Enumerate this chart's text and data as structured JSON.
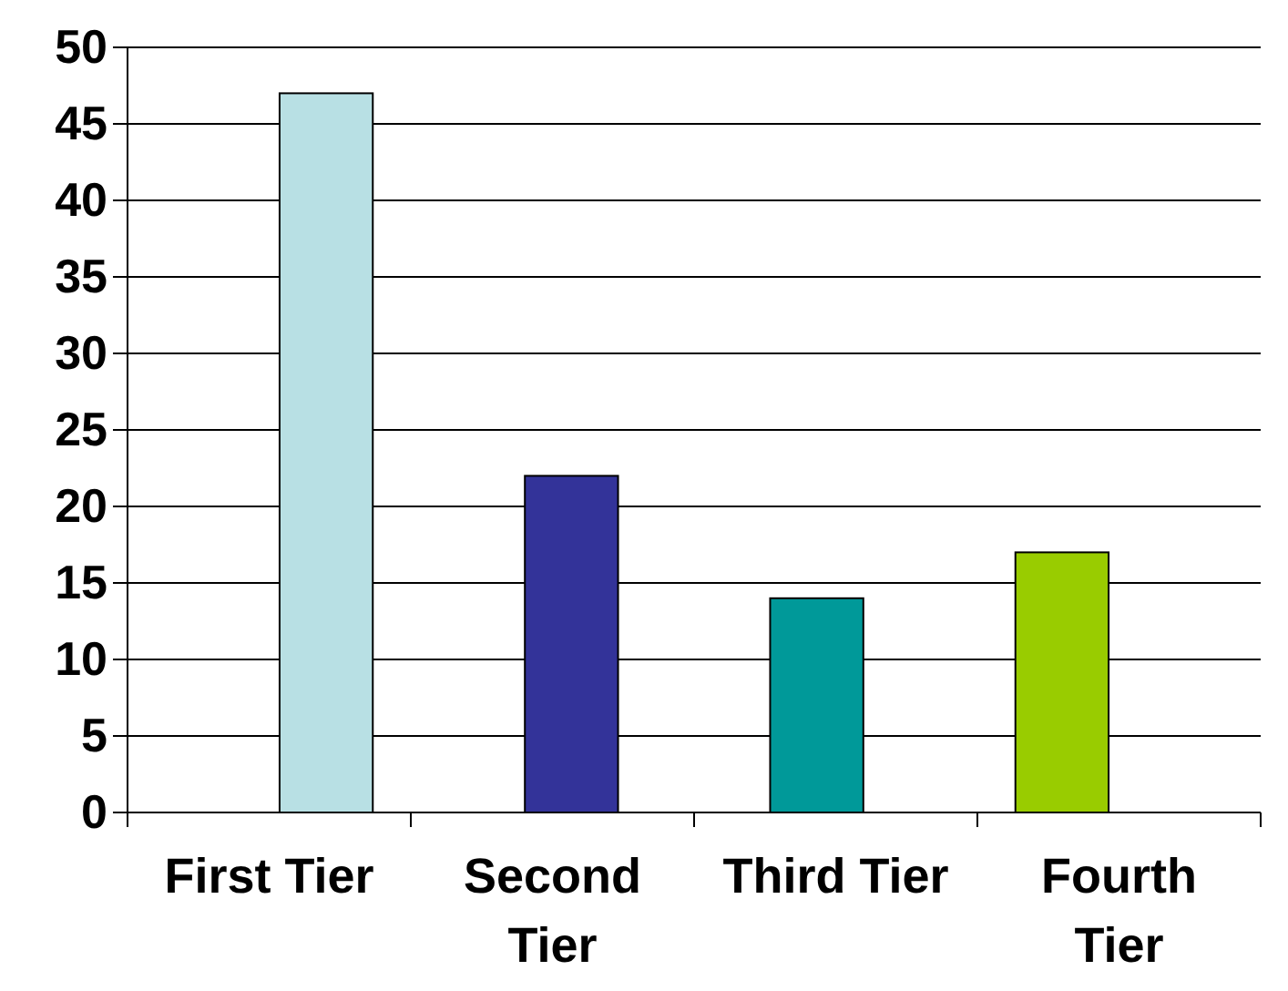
{
  "chart_data": {
    "type": "bar",
    "categories": [
      "First Tier",
      "Second Tier",
      "Third Tier",
      "Fourth Tier"
    ],
    "values": [
      47,
      22,
      14,
      17
    ],
    "colors": [
      "#b8e0e4",
      "#333399",
      "#009999",
      "#99cc00"
    ],
    "ylim": [
      0,
      50
    ],
    "yticks": [
      0,
      5,
      10,
      15,
      20,
      25,
      30,
      35,
      40,
      45,
      50
    ],
    "grid": "y"
  }
}
